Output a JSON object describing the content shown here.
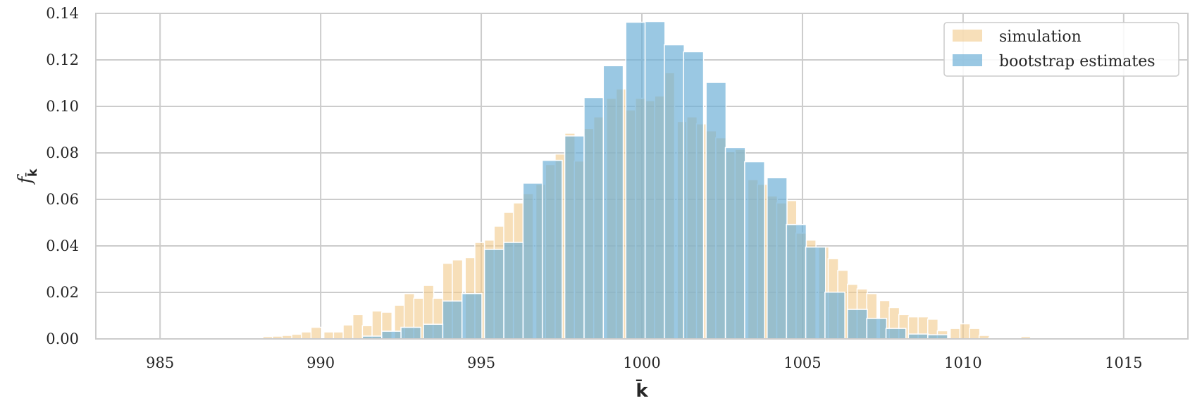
{
  "chart_data": {
    "type": "bar",
    "xlabel": "k̄",
    "ylabel": "f",
    "ylabel_sub": "k̄",
    "xlim": [
      983,
      1017
    ],
    "ylim": [
      0,
      0.14
    ],
    "xticks": [
      985,
      990,
      995,
      1000,
      1005,
      1010,
      1015
    ],
    "yticks": [
      0.0,
      0.02,
      0.04,
      0.06,
      0.08,
      0.1,
      0.12,
      0.14
    ],
    "ytick_labels": [
      "0.00",
      "0.02",
      "0.04",
      "0.06",
      "0.08",
      "0.10",
      "0.12",
      "0.14"
    ],
    "grid": true,
    "legend_position": "top-right",
    "series": [
      {
        "name": "simulation",
        "color": "#f2c98a",
        "opacity": 0.6,
        "bin_width": 0.32,
        "bins": [
          [
            986.9,
            0.0004
          ],
          [
            987.3,
            0.0003
          ],
          [
            987.6,
            0.0004
          ],
          [
            987.9,
            0.0002
          ],
          [
            988.2,
            0.001
          ],
          [
            988.5,
            0.0012
          ],
          [
            988.8,
            0.0015
          ],
          [
            989.1,
            0.002
          ],
          [
            989.4,
            0.003
          ],
          [
            989.7,
            0.005
          ],
          [
            990.1,
            0.003
          ],
          [
            990.4,
            0.003
          ],
          [
            990.7,
            0.006
          ],
          [
            991.0,
            0.0105
          ],
          [
            991.3,
            0.0057
          ],
          [
            991.6,
            0.012
          ],
          [
            991.9,
            0.0115
          ],
          [
            992.3,
            0.0145
          ],
          [
            992.6,
            0.0195
          ],
          [
            992.9,
            0.0175
          ],
          [
            993.2,
            0.023
          ],
          [
            993.5,
            0.0175
          ],
          [
            993.8,
            0.0325
          ],
          [
            994.1,
            0.034
          ],
          [
            994.5,
            0.035
          ],
          [
            994.8,
            0.0415
          ],
          [
            995.1,
            0.0425
          ],
          [
            995.4,
            0.0485
          ],
          [
            995.7,
            0.0545
          ],
          [
            996.0,
            0.0585
          ],
          [
            996.3,
            0.0625
          ],
          [
            996.7,
            0.0665
          ],
          [
            997.0,
            0.075
          ],
          [
            997.3,
            0.0795
          ],
          [
            997.6,
            0.0885
          ],
          [
            997.9,
            0.0765
          ],
          [
            998.2,
            0.0905
          ],
          [
            998.5,
            0.0955
          ],
          [
            998.9,
            0.1035
          ],
          [
            999.2,
            0.1075
          ],
          [
            999.5,
            0.0985
          ],
          [
            999.8,
            0.1035
          ],
          [
            1000.1,
            0.1025
          ],
          [
            1000.4,
            0.1045
          ],
          [
            1000.7,
            0.1145
          ],
          [
            1001.1,
            0.0935
          ],
          [
            1001.4,
            0.0955
          ],
          [
            1001.7,
            0.0925
          ],
          [
            1002.0,
            0.0895
          ],
          [
            1002.3,
            0.0865
          ],
          [
            1002.6,
            0.0805
          ],
          [
            1002.9,
            0.0815
          ],
          [
            1003.3,
            0.0685
          ],
          [
            1003.6,
            0.0665
          ],
          [
            1003.9,
            0.0615
          ],
          [
            1004.2,
            0.0585
          ],
          [
            1004.5,
            0.0595
          ],
          [
            1004.8,
            0.0455
          ],
          [
            1005.1,
            0.0425
          ],
          [
            1005.5,
            0.0395
          ],
          [
            1005.8,
            0.0345
          ],
          [
            1006.1,
            0.0295
          ],
          [
            1006.4,
            0.0235
          ],
          [
            1006.7,
            0.0215
          ],
          [
            1007.0,
            0.0195
          ],
          [
            1007.4,
            0.0165
          ],
          [
            1007.7,
            0.0135
          ],
          [
            1008.0,
            0.0105
          ],
          [
            1008.3,
            0.0095
          ],
          [
            1008.6,
            0.0095
          ],
          [
            1008.9,
            0.0085
          ],
          [
            1009.2,
            0.0035
          ],
          [
            1009.6,
            0.0045
          ],
          [
            1009.9,
            0.0065
          ],
          [
            1010.2,
            0.0045
          ],
          [
            1010.5,
            0.0015
          ],
          [
            1010.8,
            0.0005
          ],
          [
            1011.1,
            0.0005
          ],
          [
            1011.4,
            0.0003
          ],
          [
            1011.8,
            0.001
          ],
          [
            1012.1,
            0.0005
          ],
          [
            1012.4,
            0.0004
          ],
          [
            1012.7,
            0.0002
          ],
          [
            1013.0,
            0.0002
          ],
          [
            1013.3,
            0.0002
          ]
        ]
      },
      {
        "name": "bootstrap estimates",
        "color": "#6aaed6",
        "opacity": 0.68,
        "bin_width": 0.62,
        "bins": [
          [
            991.3,
            0.0012
          ],
          [
            991.9,
            0.0033
          ],
          [
            992.5,
            0.005
          ],
          [
            993.2,
            0.0063
          ],
          [
            993.8,
            0.0163
          ],
          [
            994.4,
            0.0195
          ],
          [
            995.1,
            0.0385
          ],
          [
            995.7,
            0.0415
          ],
          [
            996.3,
            0.067
          ],
          [
            996.9,
            0.0768
          ],
          [
            997.6,
            0.0873
          ],
          [
            998.2,
            0.1038
          ],
          [
            998.8,
            0.1175
          ],
          [
            999.5,
            0.1362
          ],
          [
            1000.1,
            0.1365
          ],
          [
            1000.7,
            0.1265
          ],
          [
            1001.3,
            0.1235
          ],
          [
            1002.0,
            0.1103
          ],
          [
            1002.6,
            0.0823
          ],
          [
            1003.2,
            0.0762
          ],
          [
            1003.9,
            0.0693
          ],
          [
            1004.5,
            0.0492
          ],
          [
            1005.1,
            0.0395
          ],
          [
            1005.7,
            0.0201
          ],
          [
            1006.4,
            0.0127
          ],
          [
            1007.0,
            0.0088
          ],
          [
            1007.6,
            0.0045
          ],
          [
            1008.3,
            0.0021
          ],
          [
            1008.9,
            0.0018
          ]
        ]
      }
    ]
  }
}
